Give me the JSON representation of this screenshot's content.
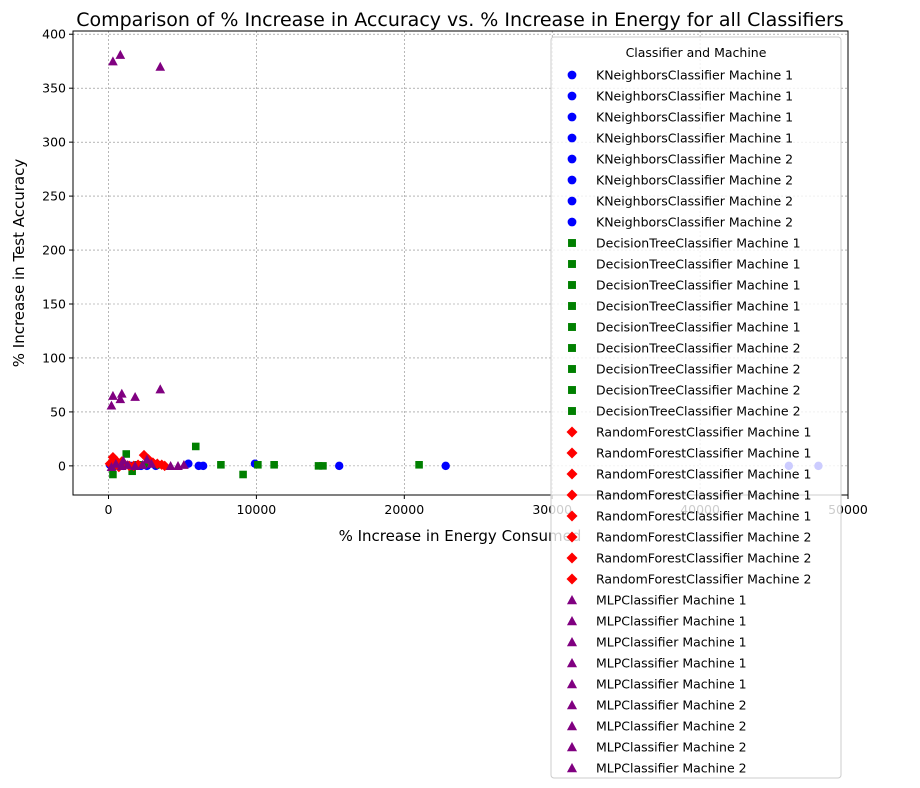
{
  "chart_data": {
    "type": "scatter",
    "title": "Comparison of % Increase in Accuracy vs. % Increase in Energy for all Classifiers",
    "xlabel": "% Increase in Energy Consumed",
    "ylabel": "% Increase in Test Accuracy",
    "xlim": [
      -2400,
      50000
    ],
    "ylim": [
      -27,
      403
    ],
    "xticks": [
      0,
      10000,
      20000,
      30000,
      40000,
      50000
    ],
    "yticks": [
      0,
      50,
      100,
      150,
      200,
      250,
      300,
      350,
      400
    ],
    "xtick_labels": [
      "0",
      "10000",
      "20000",
      "30000",
      "40000",
      "50000"
    ],
    "ytick_labels": [
      "0",
      "50",
      "100",
      "150",
      "200",
      "250",
      "300",
      "350",
      "400"
    ],
    "grid": true,
    "legend": {
      "title": "Classifier and Machine",
      "placement": "upper-right"
    },
    "series": [
      {
        "name": "KNeighborsClassifier Machine 1",
        "marker": "circle",
        "color": "#0000ff",
        "points": [
          [
            5400,
            2
          ],
          [
            6100,
            0
          ],
          [
            6400,
            0
          ],
          [
            9900,
            2
          ]
        ]
      },
      {
        "name": "KNeighborsClassifier Machine 1",
        "marker": "circle",
        "color": "#0000ff",
        "points": [
          [
            15600,
            0
          ],
          [
            200,
            0
          ],
          [
            800,
            0
          ]
        ]
      },
      {
        "name": "KNeighborsClassifier Machine 1",
        "marker": "circle",
        "color": "#0000ff",
        "points": [
          [
            22800,
            0
          ],
          [
            1500,
            0
          ]
        ]
      },
      {
        "name": "KNeighborsClassifier Machine 1",
        "marker": "circle",
        "color": "#0000ff",
        "points": [
          [
            46000,
            0
          ],
          [
            2600,
            0
          ]
        ]
      },
      {
        "name": "KNeighborsClassifier Machine 2",
        "marker": "circle",
        "color": "#0000ff",
        "points": [
          [
            48000,
            0
          ],
          [
            1000,
            0
          ]
        ]
      },
      {
        "name": "KNeighborsClassifier Machine 2",
        "marker": "circle",
        "color": "#0000ff",
        "points": [
          [
            100,
            1
          ],
          [
            300,
            -1
          ]
        ]
      },
      {
        "name": "KNeighborsClassifier Machine 2",
        "marker": "circle",
        "color": "#0000ff",
        "points": [
          [
            2200,
            0
          ]
        ]
      },
      {
        "name": "KNeighborsClassifier Machine 2",
        "marker": "circle",
        "color": "#0000ff",
        "points": [
          [
            3200,
            0
          ]
        ]
      },
      {
        "name": "DecisionTreeClassifier Machine 1",
        "marker": "square",
        "color": "#008000",
        "points": [
          [
            1200,
            11
          ],
          [
            5900,
            18
          ]
        ]
      },
      {
        "name": "DecisionTreeClassifier Machine 1",
        "marker": "square",
        "color": "#008000",
        "points": [
          [
            300,
            -8
          ],
          [
            1600,
            -5
          ]
        ]
      },
      {
        "name": "DecisionTreeClassifier Machine 1",
        "marker": "square",
        "color": "#008000",
        "points": [
          [
            7600,
            1
          ],
          [
            10100,
            1
          ]
        ]
      },
      {
        "name": "DecisionTreeClassifier Machine 1",
        "marker": "square",
        "color": "#008000",
        "points": [
          [
            9100,
            -8
          ],
          [
            11200,
            1
          ]
        ]
      },
      {
        "name": "DecisionTreeClassifier Machine 1",
        "marker": "square",
        "color": "#008000",
        "points": [
          [
            14200,
            0
          ],
          [
            14500,
            0
          ]
        ]
      },
      {
        "name": "DecisionTreeClassifier Machine 2",
        "marker": "square",
        "color": "#008000",
        "points": [
          [
            21000,
            1
          ],
          [
            800,
            2
          ]
        ]
      },
      {
        "name": "DecisionTreeClassifier Machine 2",
        "marker": "square",
        "color": "#008000",
        "points": [
          [
            2000,
            1
          ],
          [
            400,
            0
          ]
        ]
      },
      {
        "name": "DecisionTreeClassifier Machine 2",
        "marker": "square",
        "color": "#008000",
        "points": [
          [
            2700,
            2
          ]
        ]
      },
      {
        "name": "DecisionTreeClassifier Machine 2",
        "marker": "square",
        "color": "#008000",
        "points": [
          [
            3400,
            1
          ]
        ]
      },
      {
        "name": "RandomForestClassifier Machine 1",
        "marker": "diamond",
        "color": "#ff0000",
        "points": [
          [
            300,
            8
          ],
          [
            500,
            5
          ]
        ]
      },
      {
        "name": "RandomForestClassifier Machine 1",
        "marker": "diamond",
        "color": "#ff0000",
        "points": [
          [
            900,
            4
          ],
          [
            1100,
            1
          ]
        ]
      },
      {
        "name": "RandomForestClassifier Machine 1",
        "marker": "diamond",
        "color": "#ff0000",
        "points": [
          [
            2400,
            10
          ],
          [
            2700,
            6
          ]
        ]
      },
      {
        "name": "RandomForestClassifier Machine 1",
        "marker": "diamond",
        "color": "#ff0000",
        "points": [
          [
            3000,
            3
          ],
          [
            3300,
            2
          ]
        ]
      },
      {
        "name": "RandomForestClassifier Machine 1",
        "marker": "diamond",
        "color": "#ff0000",
        "points": [
          [
            3600,
            1
          ],
          [
            3800,
            0
          ]
        ]
      },
      {
        "name": "RandomForestClassifier Machine 2",
        "marker": "diamond",
        "color": "#ff0000",
        "points": [
          [
            100,
            2
          ],
          [
            600,
            3
          ]
        ]
      },
      {
        "name": "RandomForestClassifier Machine 2",
        "marker": "diamond",
        "color": "#ff0000",
        "points": [
          [
            1400,
            0
          ],
          [
            2000,
            1
          ]
        ]
      },
      {
        "name": "RandomForestClassifier Machine 2",
        "marker": "diamond",
        "color": "#ff0000",
        "points": [
          [
            700,
            -1
          ],
          [
            1700,
            0
          ]
        ]
      },
      {
        "name": "MLPClassifier Machine 1",
        "marker": "triangle",
        "color": "#800080",
        "points": [
          [
            300,
            375
          ],
          [
            800,
            381
          ]
        ]
      },
      {
        "name": "MLPClassifier Machine 1",
        "marker": "triangle",
        "color": "#800080",
        "points": [
          [
            3500,
            370
          ]
        ]
      },
      {
        "name": "MLPClassifier Machine 1",
        "marker": "triangle",
        "color": "#800080",
        "points": [
          [
            200,
            56
          ],
          [
            300,
            65
          ]
        ]
      },
      {
        "name": "MLPClassifier Machine 1",
        "marker": "triangle",
        "color": "#800080",
        "points": [
          [
            800,
            62
          ],
          [
            900,
            67
          ]
        ]
      },
      {
        "name": "MLPClassifier Machine 1",
        "marker": "triangle",
        "color": "#800080",
        "points": [
          [
            1800,
            64
          ],
          [
            3500,
            71
          ]
        ]
      },
      {
        "name": "MLPClassifier Machine 2",
        "marker": "triangle",
        "color": "#800080",
        "points": [
          [
            200,
            -1
          ],
          [
            500,
            2
          ],
          [
            900,
            0
          ]
        ]
      },
      {
        "name": "MLPClassifier Machine 2",
        "marker": "triangle",
        "color": "#800080",
        "points": [
          [
            1300,
            1
          ],
          [
            1800,
            0
          ],
          [
            2300,
            1
          ]
        ]
      },
      {
        "name": "MLPClassifier Machine 2",
        "marker": "triangle",
        "color": "#800080",
        "points": [
          [
            2600,
            6
          ],
          [
            2900,
            2
          ],
          [
            4200,
            0
          ]
        ]
      },
      {
        "name": "MLPClassifier Machine 2",
        "marker": "triangle",
        "color": "#800080",
        "points": [
          [
            4700,
            0
          ],
          [
            5100,
            1
          ],
          [
            1000,
            5
          ]
        ]
      }
    ]
  }
}
